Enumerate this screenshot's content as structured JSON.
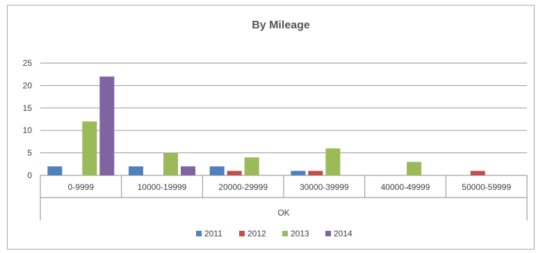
{
  "chart_data": {
    "type": "bar",
    "title": "By Mileage",
    "xlabel": "OK",
    "ylabel": "",
    "ylim": [
      0,
      25
    ],
    "yticks": [
      0,
      5,
      10,
      15,
      20,
      25
    ],
    "grid": true,
    "legend_position": "bottom",
    "categories": [
      "0-9999",
      "10000-19999",
      "20000-29999",
      "30000-39999",
      "40000-49999",
      "50000-59999"
    ],
    "series": [
      {
        "name": "2011",
        "color": "#4f81bd",
        "values": [
          2,
          2,
          2,
          1,
          0,
          0
        ]
      },
      {
        "name": "2012",
        "color": "#c0504d",
        "values": [
          0,
          0,
          1,
          1,
          0,
          1
        ]
      },
      {
        "name": "2013",
        "color": "#9bbb59",
        "values": [
          12,
          5,
          4,
          6,
          3,
          0
        ]
      },
      {
        "name": "2014",
        "color": "#8064a2",
        "values": [
          22,
          2,
          0,
          0,
          0,
          0
        ]
      }
    ]
  }
}
